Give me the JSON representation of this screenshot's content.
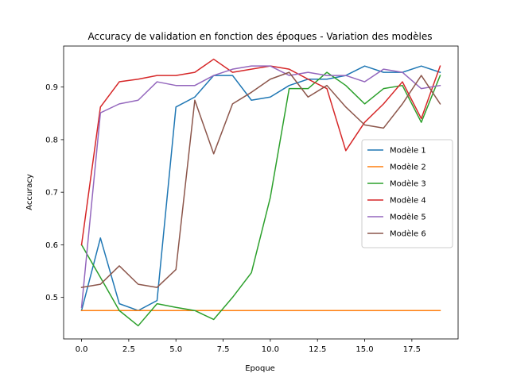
{
  "chart_data": {
    "type": "line",
    "title": "Accuracy de validation en fonction des époques - Variation des modèles",
    "xlabel": "Epoque",
    "ylabel": "Accuracy",
    "xlim": [
      -0.95,
      19.95
    ],
    "ylim": [
      0.421,
      0.978
    ],
    "xticks": [
      0.0,
      2.5,
      5.0,
      7.5,
      10.0,
      12.5,
      15.0,
      17.5
    ],
    "xtick_labels": [
      "0.0",
      "2.5",
      "5.0",
      "7.5",
      "10.0",
      "12.5",
      "15.0",
      "17.5"
    ],
    "yticks": [
      0.5,
      0.6,
      0.7,
      0.8,
      0.9
    ],
    "ytick_labels": [
      "0.5",
      "0.6",
      "0.7",
      "0.8",
      "0.9"
    ],
    "grid": false,
    "legend_position": "center-right",
    "x": [
      0,
      1,
      2,
      3,
      4,
      5,
      6,
      7,
      8,
      9,
      10,
      11,
      12,
      13,
      14,
      15,
      16,
      17,
      18,
      19
    ],
    "series": [
      {
        "name": "Modèle 1",
        "color": "#1f77b4",
        "values": [
          0.475,
          0.613,
          0.488,
          0.475,
          0.494,
          0.862,
          0.881,
          0.922,
          0.922,
          0.875,
          0.881,
          0.903,
          0.915,
          0.915,
          0.922,
          0.94,
          0.928,
          0.928,
          0.94,
          0.928
        ]
      },
      {
        "name": "Modèle 2",
        "color": "#ff7f0e",
        "values": [
          0.475,
          0.475,
          0.475,
          0.475,
          0.475,
          0.475,
          0.475,
          0.475,
          0.475,
          0.475,
          0.475,
          0.475,
          0.475,
          0.475,
          0.475,
          0.475,
          0.475,
          0.475,
          0.475,
          0.475
        ]
      },
      {
        "name": "Modèle 3",
        "color": "#2ca02c",
        "values": [
          0.6,
          0.538,
          0.475,
          0.446,
          0.488,
          0.481,
          0.475,
          0.458,
          0.5,
          0.547,
          0.69,
          0.897,
          0.897,
          0.928,
          0.903,
          0.868,
          0.897,
          0.903,
          0.833,
          0.922
        ]
      },
      {
        "name": "Modèle 4",
        "color": "#d62728",
        "values": [
          0.6,
          0.862,
          0.91,
          0.915,
          0.922,
          0.922,
          0.928,
          0.953,
          0.928,
          0.934,
          0.94,
          0.934,
          0.915,
          0.897,
          0.779,
          0.833,
          0.868,
          0.91,
          0.84,
          0.94
        ]
      },
      {
        "name": "Modèle 5",
        "color": "#9467bd",
        "values": [
          0.481,
          0.851,
          0.868,
          0.875,
          0.91,
          0.903,
          0.903,
          0.922,
          0.934,
          0.94,
          0.94,
          0.922,
          0.928,
          0.922,
          0.922,
          0.91,
          0.934,
          0.928,
          0.897,
          0.903
        ]
      },
      {
        "name": "Modèle 6",
        "color": "#8c564b",
        "values": [
          0.519,
          0.525,
          0.56,
          0.525,
          0.519,
          0.553,
          0.875,
          0.773,
          0.868,
          0.89,
          0.915,
          0.928,
          0.881,
          0.903,
          0.862,
          0.828,
          0.822,
          0.868,
          0.922,
          0.868
        ]
      }
    ]
  }
}
